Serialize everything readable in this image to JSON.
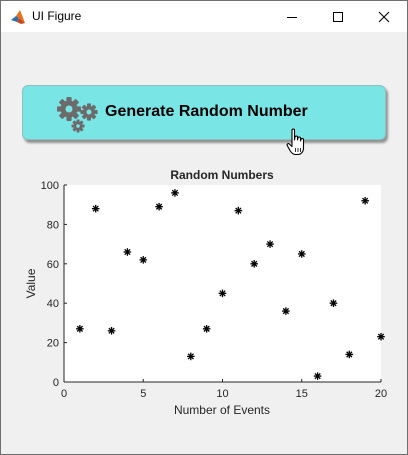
{
  "window": {
    "title": "UI Figure",
    "controls": {
      "minimize": "minimize",
      "maximize": "maximize",
      "close": "close"
    }
  },
  "button": {
    "label": "Generate Random Number",
    "icon": "gears-icon",
    "color": "#7ae5e5"
  },
  "chart_data": {
    "type": "scatter",
    "title": "Random Numbers",
    "xlabel": "Number of Events",
    "ylabel": "Value",
    "xlim": [
      0,
      20
    ],
    "ylim": [
      0,
      100
    ],
    "xticks": [
      0,
      5,
      10,
      15,
      20
    ],
    "yticks": [
      0,
      20,
      40,
      60,
      80,
      100
    ],
    "marker": "*",
    "marker_color": "#000000",
    "grid": false,
    "x": [
      1,
      2,
      3,
      4,
      5,
      6,
      7,
      8,
      9,
      10,
      11,
      12,
      13,
      14,
      15,
      16,
      17,
      18,
      19,
      20
    ],
    "y": [
      27,
      88,
      26,
      66,
      62,
      89,
      96,
      13,
      27,
      45,
      87,
      60,
      70,
      36,
      65,
      3,
      40,
      14,
      92,
      23
    ]
  }
}
